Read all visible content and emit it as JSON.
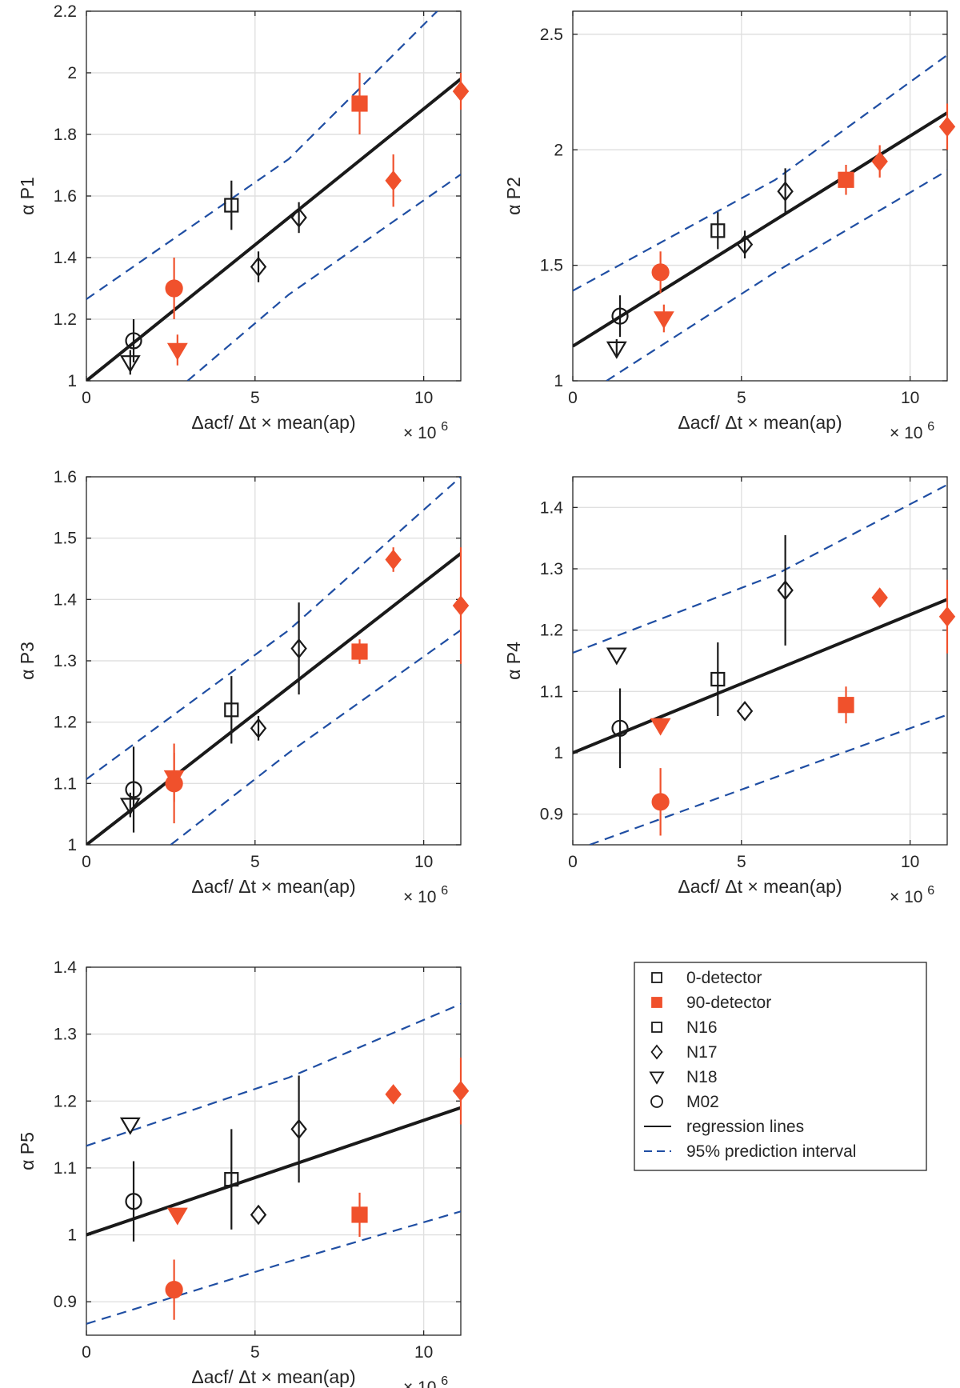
{
  "colors": {
    "black": "#1a1a1a",
    "red": "#f0512c",
    "blue": "#1f4ea3",
    "grid": "#e0e0e0",
    "axis": "#262626"
  },
  "chart_data": [
    {
      "type": "scatter",
      "title": "",
      "xlabel": "Δacf/ Δt × mean(ap)",
      "ylabel": "α P1",
      "xmultiplier": "× 10",
      "xexponent": "6",
      "xlim": [
        0,
        11.1
      ],
      "ylim": [
        1,
        2.2
      ],
      "xticks": [
        0,
        5,
        10
      ],
      "yticks": [
        1,
        1.2,
        1.4,
        1.6,
        1.8,
        2,
        2.2
      ],
      "grid": true,
      "regression": [
        [
          0,
          1
        ],
        [
          11.1,
          1.98
        ]
      ],
      "pi_upper": [
        [
          0,
          1.265
        ],
        [
          6,
          1.72
        ],
        [
          10.4,
          2.2
        ]
      ],
      "pi_lower": [
        [
          3,
          1
        ],
        [
          6,
          1.28
        ],
        [
          11.1,
          1.67
        ]
      ],
      "points": [
        {
          "series": "N18",
          "group": "0-detector",
          "x": 1.3,
          "y": 1.06,
          "err": 0.04
        },
        {
          "series": "M02",
          "group": "0-detector",
          "x": 1.4,
          "y": 1.13,
          "err": 0.07
        },
        {
          "series": "M02",
          "group": "90-detector",
          "x": 2.6,
          "y": 1.3,
          "err": 0.1
        },
        {
          "series": "N18",
          "group": "90-detector",
          "x": 2.7,
          "y": 1.1,
          "err": 0.05
        },
        {
          "series": "N16",
          "group": "0-detector",
          "x": 4.3,
          "y": 1.57,
          "err": 0.08
        },
        {
          "series": "N17",
          "group": "0-detector",
          "x": 5.1,
          "y": 1.37,
          "err": 0.05
        },
        {
          "series": "N17",
          "group": "0-detector",
          "x": 6.3,
          "y": 1.53,
          "err": 0.05
        },
        {
          "series": "N16",
          "group": "90-detector",
          "x": 8.1,
          "y": 1.9,
          "err": 0.1
        },
        {
          "series": "N17",
          "group": "90-detector",
          "x": 9.1,
          "y": 1.65,
          "err": 0.085
        },
        {
          "series": "N17",
          "group": "90-detector",
          "x": 11.1,
          "y": 1.94,
          "err": 0.06
        }
      ]
    },
    {
      "type": "scatter",
      "title": "",
      "xlabel": "Δacf/ Δt × mean(ap)",
      "ylabel": "α P2",
      "xmultiplier": "× 10",
      "xexponent": "6",
      "xlim": [
        0,
        11.1
      ],
      "ylim": [
        1,
        2.6
      ],
      "xticks": [
        0,
        5,
        10
      ],
      "yticks": [
        1,
        1.5,
        2,
        2.5
      ],
      "grid": true,
      "regression": [
        [
          0,
          1.15
        ],
        [
          11.1,
          2.16
        ]
      ],
      "pi_upper": [
        [
          0,
          1.39
        ],
        [
          6,
          1.87
        ],
        [
          11.1,
          2.41
        ]
      ],
      "pi_lower": [
        [
          1,
          1
        ],
        [
          6,
          1.47
        ],
        [
          11.1,
          1.91
        ]
      ],
      "points": [
        {
          "series": "N18",
          "group": "0-detector",
          "x": 1.3,
          "y": 1.14,
          "err": 0.04
        },
        {
          "series": "M02",
          "group": "0-detector",
          "x": 1.4,
          "y": 1.28,
          "err": 0.09
        },
        {
          "series": "M02",
          "group": "90-detector",
          "x": 2.6,
          "y": 1.47,
          "err": 0.09
        },
        {
          "series": "N18",
          "group": "90-detector",
          "x": 2.7,
          "y": 1.27,
          "err": 0.06
        },
        {
          "series": "N16",
          "group": "0-detector",
          "x": 4.3,
          "y": 1.65,
          "err": 0.08
        },
        {
          "series": "N17",
          "group": "0-detector",
          "x": 5.1,
          "y": 1.59,
          "err": 0.06
        },
        {
          "series": "N17",
          "group": "0-detector",
          "x": 6.3,
          "y": 1.82,
          "err": 0.1
        },
        {
          "series": "N16",
          "group": "90-detector",
          "x": 8.1,
          "y": 1.87,
          "err": 0.065
        },
        {
          "series": "N17",
          "group": "90-detector",
          "x": 9.1,
          "y": 1.95,
          "err": 0.07
        },
        {
          "series": "N17",
          "group": "90-detector",
          "x": 11.1,
          "y": 2.1,
          "err": 0.1
        }
      ]
    },
    {
      "type": "scatter",
      "title": "",
      "xlabel": "Δacf/ Δt × mean(ap)",
      "ylabel": "α P3",
      "xmultiplier": "× 10",
      "xexponent": "6",
      "xlim": [
        0,
        11.1
      ],
      "ylim": [
        1,
        1.6
      ],
      "xticks": [
        0,
        5,
        10
      ],
      "yticks": [
        1,
        1.1,
        1.2,
        1.3,
        1.4,
        1.5,
        1.6
      ],
      "grid": true,
      "regression": [
        [
          0,
          1
        ],
        [
          11.1,
          1.475
        ]
      ],
      "pi_upper": [
        [
          0,
          1.107
        ],
        [
          6,
          1.35
        ],
        [
          11.1,
          1.6
        ]
      ],
      "pi_lower": [
        [
          2.5,
          1
        ],
        [
          6,
          1.15
        ],
        [
          11.1,
          1.35
        ]
      ],
      "points": [
        {
          "series": "N18",
          "group": "0-detector",
          "x": 1.3,
          "y": 1.065,
          "err": 0.02
        },
        {
          "series": "M02",
          "group": "0-detector",
          "x": 1.4,
          "y": 1.09,
          "err": 0.07
        },
        {
          "series": "N18",
          "group": "90-detector",
          "x": 2.6,
          "y": 1.11,
          "err": 0.04
        },
        {
          "series": "M02",
          "group": "90-detector",
          "x": 2.6,
          "y": 1.1,
          "err": 0.065
        },
        {
          "series": "N16",
          "group": "0-detector",
          "x": 4.3,
          "y": 1.22,
          "err": 0.055
        },
        {
          "series": "N17",
          "group": "0-detector",
          "x": 5.1,
          "y": 1.19,
          "err": 0.02
        },
        {
          "series": "N17",
          "group": "0-detector",
          "x": 6.3,
          "y": 1.32,
          "err": 0.075
        },
        {
          "series": "N16",
          "group": "90-detector",
          "x": 8.1,
          "y": 1.315,
          "err": 0.02
        },
        {
          "series": "N17",
          "group": "90-detector",
          "x": 9.1,
          "y": 1.465,
          "err": 0.02
        },
        {
          "series": "N17",
          "group": "90-detector",
          "x": 11.1,
          "y": 1.39,
          "err": 0.095
        }
      ]
    },
    {
      "type": "scatter",
      "title": "",
      "xlabel": "Δacf/ Δt × mean(ap)",
      "ylabel": "α P4",
      "xmultiplier": "× 10",
      "xexponent": "6",
      "xlim": [
        0,
        11.1
      ],
      "ylim": [
        0.85,
        1.45
      ],
      "xticks": [
        0,
        5,
        10
      ],
      "yticks": [
        0.9,
        1,
        1.1,
        1.2,
        1.3,
        1.4
      ],
      "grid": true,
      "regression": [
        [
          0,
          1
        ],
        [
          11.1,
          1.25
        ]
      ],
      "pi_upper": [
        [
          0,
          1.163
        ],
        [
          6,
          1.29
        ],
        [
          11.1,
          1.437
        ]
      ],
      "pi_lower": [
        [
          0.5,
          0.85
        ],
        [
          6,
          0.96
        ],
        [
          11.1,
          1.062
        ]
      ],
      "points": [
        {
          "series": "N18",
          "group": "0-detector",
          "x": 1.3,
          "y": 1.16,
          "err": 0
        },
        {
          "series": "M02",
          "group": "0-detector",
          "x": 1.4,
          "y": 1.04,
          "err": 0.065
        },
        {
          "series": "M02",
          "group": "90-detector",
          "x": 2.6,
          "y": 0.92,
          "err": 0.055
        },
        {
          "series": "N18",
          "group": "90-detector",
          "x": 2.6,
          "y": 1.045,
          "err": 0
        },
        {
          "series": "N16",
          "group": "0-detector",
          "x": 4.3,
          "y": 1.12,
          "err": 0.06
        },
        {
          "series": "N17",
          "group": "0-detector",
          "x": 5.1,
          "y": 1.068,
          "err": 0
        },
        {
          "series": "N17",
          "group": "0-detector",
          "x": 6.3,
          "y": 1.265,
          "err": 0.09
        },
        {
          "series": "N16",
          "group": "90-detector",
          "x": 8.1,
          "y": 1.078,
          "err": 0.03
        },
        {
          "series": "N17",
          "group": "90-detector",
          "x": 9.1,
          "y": 1.253,
          "err": 0.01
        },
        {
          "series": "N17",
          "group": "90-detector",
          "x": 11.1,
          "y": 1.222,
          "err": 0.06
        }
      ]
    },
    {
      "type": "scatter",
      "title": "",
      "xlabel": "Δacf/ Δt × mean(ap)",
      "ylabel": "α P5",
      "xmultiplier": "× 10",
      "xexponent": "6",
      "xlim": [
        0,
        11.1
      ],
      "ylim": [
        0.85,
        1.4
      ],
      "xticks": [
        0,
        5,
        10
      ],
      "yticks": [
        0.9,
        1,
        1.1,
        1.2,
        1.3,
        1.4
      ],
      "grid": true,
      "regression": [
        [
          0,
          1
        ],
        [
          11.1,
          1.19
        ]
      ],
      "pi_upper": [
        [
          0,
          1.133
        ],
        [
          6,
          1.235
        ],
        [
          11.1,
          1.345
        ]
      ],
      "pi_lower": [
        [
          0,
          0.867
        ],
        [
          6,
          0.96
        ],
        [
          11.1,
          1.035
        ]
      ],
      "points": [
        {
          "series": "N18",
          "group": "0-detector",
          "x": 1.3,
          "y": 1.165,
          "err": 0
        },
        {
          "series": "M02",
          "group": "0-detector",
          "x": 1.4,
          "y": 1.05,
          "err": 0.06
        },
        {
          "series": "M02",
          "group": "90-detector",
          "x": 2.6,
          "y": 0.918,
          "err": 0.045
        },
        {
          "series": "N18",
          "group": "90-detector",
          "x": 2.7,
          "y": 1.03,
          "err": 0
        },
        {
          "series": "N16",
          "group": "0-detector",
          "x": 4.3,
          "y": 1.083,
          "err": 0.075
        },
        {
          "series": "N17",
          "group": "0-detector",
          "x": 5.1,
          "y": 1.03,
          "err": 0
        },
        {
          "series": "N17",
          "group": "0-detector",
          "x": 6.3,
          "y": 1.158,
          "err": 0.08
        },
        {
          "series": "N16",
          "group": "90-detector",
          "x": 8.1,
          "y": 1.03,
          "err": 0.033
        },
        {
          "series": "N17",
          "group": "90-detector",
          "x": 9.1,
          "y": 1.21,
          "err": 0.008
        },
        {
          "series": "N17",
          "group": "90-detector",
          "x": 11.1,
          "y": 1.215,
          "err": 0.05
        }
      ]
    }
  ],
  "legend": {
    "placement": "bottom-right",
    "items": [
      {
        "label": "0-detector",
        "marker": "square",
        "filled": false,
        "color": "#1a1a1a"
      },
      {
        "label": "90-detector",
        "marker": "square",
        "filled": true,
        "color": "#f0512c"
      },
      {
        "label": "N16",
        "marker": "square",
        "filled": false,
        "color": "#1a1a1a"
      },
      {
        "label": "N17",
        "marker": "diamond",
        "filled": false,
        "color": "#1a1a1a"
      },
      {
        "label": "N18",
        "marker": "triangle-down",
        "filled": false,
        "color": "#1a1a1a"
      },
      {
        "label": "M02",
        "marker": "circle",
        "filled": false,
        "color": "#1a1a1a"
      },
      {
        "label": "regression lines",
        "marker": "line-solid",
        "filled": false,
        "color": "#1a1a1a"
      },
      {
        "label": "95% prediction interval",
        "marker": "line-dashed",
        "filled": false,
        "color": "#1f4ea3"
      }
    ]
  }
}
